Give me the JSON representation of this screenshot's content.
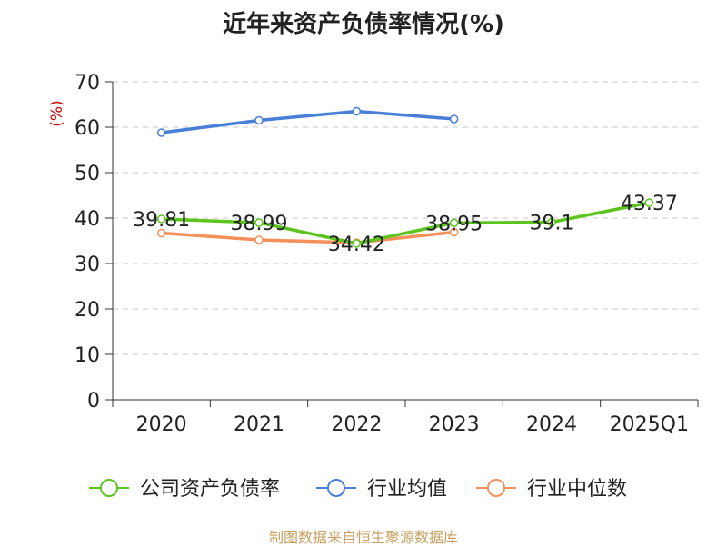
{
  "chart_data": {
    "type": "line",
    "title": "近年来资产负债率情况(%)",
    "ylabel": "(%)",
    "categories": [
      "2020",
      "2021",
      "2022",
      "2023",
      "2024",
      "2025Q1"
    ],
    "ylim": [
      0,
      70
    ],
    "yticks": [
      0,
      10,
      20,
      30,
      40,
      50,
      60,
      70
    ],
    "grid": true,
    "legend_position": "bottom",
    "series": [
      {
        "name": "公司资产负债率",
        "color": "#5cc41f",
        "values": [
          39.81,
          38.99,
          34.42,
          38.95,
          39.1,
          43.37
        ],
        "labels": [
          "39.81",
          "38.99",
          "34.42",
          "38.95",
          "39.1",
          "43.37"
        ]
      },
      {
        "name": "行业均值",
        "color": "#4a7fd8",
        "values": [
          58.8,
          61.5,
          63.5,
          61.8,
          null,
          null
        ]
      },
      {
        "name": "行业中位数",
        "color": "#f4915a",
        "values": [
          36.7,
          35.2,
          34.6,
          36.9,
          null,
          null
        ]
      }
    ]
  },
  "footer": {
    "source": "制图数据来自恒生聚源数据库"
  }
}
